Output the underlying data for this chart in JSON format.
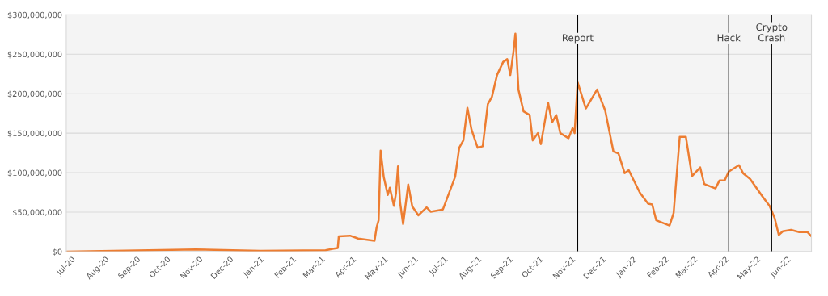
{
  "chart_data": {
    "type": "line",
    "x": [
      "2020-07-01",
      "2020-11-05",
      "2021-01-07",
      "2021-03-12",
      "2021-03-20",
      "2021-03-24",
      "2021-03-25",
      "2021-04-05",
      "2021-04-13",
      "2021-04-29",
      "2021-05-01",
      "2021-05-03",
      "2021-05-05",
      "2021-05-08",
      "2021-05-12",
      "2021-05-14",
      "2021-05-18",
      "2021-05-20",
      "2021-05-22",
      "2021-05-24",
      "2021-05-27",
      "2021-06-01",
      "2021-06-05",
      "2021-06-11",
      "2021-06-19",
      "2021-06-23",
      "2021-07-05",
      "2021-07-09",
      "2021-07-17",
      "2021-07-21",
      "2021-07-25",
      "2021-07-29",
      "2021-08-02",
      "2021-08-08",
      "2021-08-13",
      "2021-08-18",
      "2021-08-22",
      "2021-08-27",
      "2021-09-02",
      "2021-09-06",
      "2021-09-09",
      "2021-09-12",
      "2021-09-14",
      "2021-09-17",
      "2021-09-22",
      "2021-09-28",
      "2021-10-01",
      "2021-10-06",
      "2021-10-09",
      "2021-10-16",
      "2021-10-20",
      "2021-10-24",
      "2021-10-28",
      "2021-11-05",
      "2021-11-09",
      "2021-11-11",
      "2021-11-14",
      "2021-11-22",
      "2021-12-03",
      "2021-12-11",
      "2021-12-19",
      "2021-12-24",
      "2021-12-30",
      "2022-01-03",
      "2022-01-14",
      "2022-01-22",
      "2022-01-26",
      "2022-01-30",
      "2022-02-12",
      "2022-02-16",
      "2022-02-22",
      "2022-02-28",
      "2022-03-06",
      "2022-03-14",
      "2022-03-18",
      "2022-03-29",
      "2022-04-02",
      "2022-04-07",
      "2022-04-11",
      "2022-04-21",
      "2022-04-25",
      "2022-05-02",
      "2022-05-14",
      "2022-05-21",
      "2022-05-26",
      "2022-05-30",
      "2022-06-03",
      "2022-06-11",
      "2022-06-19",
      "2022-06-27",
      "2022-07-01"
    ],
    "series": [
      {
        "color": "#ed7d31",
        "values": [
          0,
          2800000,
          900000,
          1800000,
          3700000,
          4600000,
          19300000,
          20200000,
          16600000,
          13800000,
          30400000,
          39600000,
          127900000,
          94800000,
          71800000,
          81000000,
          58000000,
          73600000,
          108100000,
          62600000,
          34900000,
          85100000,
          57100000,
          46000000,
          56100000,
          50600000,
          53400000,
          67300000,
          94800000,
          131600000,
          140800000,
          182200000,
          154600000,
          131600000,
          133400000,
          186800000,
          196000000,
          223600000,
          240200000,
          243800000,
          223600000,
          252100000,
          276100000,
          205200000,
          177600000,
          173000000,
          140800000,
          150000000,
          136200000,
          188600000,
          163800000,
          173000000,
          150000000,
          143600000,
          156400000,
          150000000,
          214400000,
          181300000,
          205200000,
          178500000,
          126900000,
          124200000,
          99400000,
          103100000,
          74600000,
          60700000,
          59800000,
          39600000,
          33100000,
          48800000,
          145400000,
          145400000,
          95700000,
          106700000,
          85600000,
          80100000,
          90200000,
          90200000,
          101300000,
          109500000,
          99400000,
          92000000,
          70000000,
          58000000,
          42300000,
          21200000,
          25800000,
          27600000,
          24800000,
          24800000,
          19300000
        ]
      }
    ],
    "xlim": [
      "2020-07-01",
      "2022-07-01"
    ],
    "xticks": [
      {
        "value": "2020-07-01",
        "label": "Jul-20"
      },
      {
        "value": "2020-08-01",
        "label": "Aug-20"
      },
      {
        "value": "2020-09-01",
        "label": "Sep-20"
      },
      {
        "value": "2020-10-01",
        "label": "Oct-20"
      },
      {
        "value": "2020-11-01",
        "label": "Nov-20"
      },
      {
        "value": "2020-12-01",
        "label": "Dec-20"
      },
      {
        "value": "2021-01-01",
        "label": "Jan-21"
      },
      {
        "value": "2021-02-01",
        "label": "Feb-21"
      },
      {
        "value": "2021-03-01",
        "label": "Mar-21"
      },
      {
        "value": "2021-04-01",
        "label": "Apr-21"
      },
      {
        "value": "2021-05-01",
        "label": "May-21"
      },
      {
        "value": "2021-06-01",
        "label": "Jun-21"
      },
      {
        "value": "2021-07-01",
        "label": "Jul-21"
      },
      {
        "value": "2021-08-01",
        "label": "Aug-21"
      },
      {
        "value": "2021-09-01",
        "label": "Sep-21"
      },
      {
        "value": "2021-10-01",
        "label": "Oct-21"
      },
      {
        "value": "2021-11-01",
        "label": "Nov-21"
      },
      {
        "value": "2021-12-01",
        "label": "Dec-21"
      },
      {
        "value": "2022-01-01",
        "label": "Jan-22"
      },
      {
        "value": "2022-02-01",
        "label": "Feb-22"
      },
      {
        "value": "2022-03-01",
        "label": "Mar-22"
      },
      {
        "value": "2022-04-01",
        "label": "Apr-22"
      },
      {
        "value": "2022-05-01",
        "label": "May-22"
      },
      {
        "value": "2022-06-01",
        "label": "Jun-22"
      }
    ],
    "ylim": [
      0,
      300000000
    ],
    "yticks": [
      {
        "value": 0,
        "label": "$0"
      },
      {
        "value": 50000000,
        "label": "$50,000,000"
      },
      {
        "value": 100000000,
        "label": "$100,000,000"
      },
      {
        "value": 150000000,
        "label": "$150,000,000"
      },
      {
        "value": 200000000,
        "label": "$200,000,000"
      },
      {
        "value": 250000000,
        "label": "$250,000,000"
      },
      {
        "value": 300000000,
        "label": "$300,000,000"
      }
    ],
    "grid": "y",
    "ref_lines": [
      {
        "axis": "x",
        "value": "2021-11-14",
        "label": "Report",
        "color": "#000000"
      },
      {
        "axis": "x",
        "value": "2022-04-11",
        "label": "Hack",
        "color": "#000000"
      },
      {
        "axis": "x",
        "value": "2022-05-23",
        "label": "Crypto\nCrash",
        "color": "#000000"
      }
    ]
  }
}
